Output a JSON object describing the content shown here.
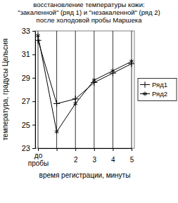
{
  "chart_data": {
    "type": "line",
    "title": "восстановление температуры кожи: \"закаленной\" (ряд 1) и \"незакаленной\" (ряд 2) после холодовой пробы Маршека",
    "x_label": "время регистрации, минуты",
    "y_label": "температура, градусы Цельсия",
    "categories": [
      "до пробы",
      null,
      "2",
      "3",
      "4",
      "5"
    ],
    "series": [
      {
        "name": "Ряд1",
        "color": "#000000",
        "marker": "plus",
        "line_style": "solid",
        "values": [
          32.2,
          26.8,
          27.2,
          28.6,
          29.4,
          30.2
        ]
      },
      {
        "name": "Ряд2",
        "color": "#000000",
        "marker": "asterisk",
        "line_style": "solid",
        "values": [
          32.6,
          24.4,
          26.8,
          28.8,
          29.6,
          30.4
        ]
      }
    ],
    "ylim": [
      23,
      33
    ],
    "yticks": [
      23,
      25,
      27,
      29,
      31,
      33
    ],
    "grid": true,
    "legend": "right"
  }
}
